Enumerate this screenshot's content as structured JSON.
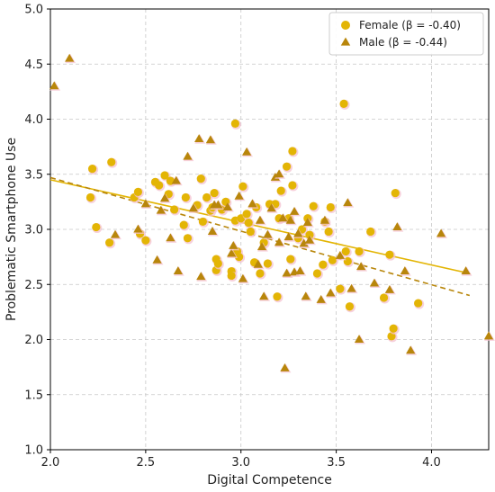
{
  "chart_data": {
    "type": "scatter",
    "title": "",
    "xlabel": "Digital Competence",
    "ylabel": "Problematic Smartphone Use",
    "xlim": [
      2.0,
      4.3
    ],
    "ylim": [
      1.0,
      5.0
    ],
    "x_ticks": [
      "2.0",
      "2.5",
      "3.0",
      "3.5",
      "4.0"
    ],
    "y_ticks": [
      "1.0",
      "1.5",
      "2.0",
      "2.5",
      "3.0",
      "3.5",
      "4.0",
      "4.5",
      "5.0"
    ],
    "grid": true,
    "legend_position": "top-right",
    "series": [
      {
        "name": "Female (β = -0.40)",
        "marker": "circle",
        "color": "#e3b505",
        "points": [
          [
            2.22,
            3.55
          ],
          [
            2.21,
            3.29
          ],
          [
            2.24,
            3.02
          ],
          [
            2.31,
            2.88
          ],
          [
            2.32,
            3.61
          ],
          [
            2.44,
            3.29
          ],
          [
            2.46,
            3.34
          ],
          [
            2.47,
            2.96
          ],
          [
            2.5,
            2.9
          ],
          [
            2.55,
            3.43
          ],
          [
            2.57,
            3.4
          ],
          [
            2.6,
            3.49
          ],
          [
            2.62,
            3.32
          ],
          [
            2.63,
            3.44
          ],
          [
            2.65,
            3.18
          ],
          [
            2.7,
            3.04
          ],
          [
            2.71,
            3.29
          ],
          [
            2.72,
            2.92
          ],
          [
            2.77,
            3.22
          ],
          [
            2.79,
            3.46
          ],
          [
            2.8,
            3.07
          ],
          [
            2.82,
            3.29
          ],
          [
            2.84,
            3.17
          ],
          [
            2.85,
            3.2
          ],
          [
            2.86,
            3.33
          ],
          [
            2.87,
            2.73
          ],
          [
            2.87,
            2.63
          ],
          [
            2.88,
            2.69
          ],
          [
            2.9,
            3.18
          ],
          [
            2.92,
            3.25
          ],
          [
            2.95,
            2.62
          ],
          [
            2.95,
            2.58
          ],
          [
            2.97,
            3.96
          ],
          [
            2.97,
            3.08
          ],
          [
            2.98,
            2.8
          ],
          [
            2.99,
            2.75
          ],
          [
            3.0,
            3.1
          ],
          [
            3.01,
            3.39
          ],
          [
            3.03,
            3.14
          ],
          [
            3.04,
            3.06
          ],
          [
            3.05,
            2.98
          ],
          [
            3.07,
            2.7
          ],
          [
            3.08,
            3.2
          ],
          [
            3.1,
            2.6
          ],
          [
            3.12,
            2.88
          ],
          [
            3.14,
            2.69
          ],
          [
            3.15,
            3.23
          ],
          [
            3.18,
            3.23
          ],
          [
            3.19,
            2.39
          ],
          [
            3.2,
            3.1
          ],
          [
            3.21,
            3.35
          ],
          [
            3.24,
            3.57
          ],
          [
            3.25,
            3.1
          ],
          [
            3.26,
            2.73
          ],
          [
            3.27,
            3.4
          ],
          [
            3.27,
            3.71
          ],
          [
            3.3,
            2.92
          ],
          [
            3.32,
            3.0
          ],
          [
            3.35,
            3.1
          ],
          [
            3.36,
            2.95
          ],
          [
            3.38,
            3.21
          ],
          [
            3.4,
            2.6
          ],
          [
            3.43,
            2.68
          ],
          [
            3.44,
            3.07
          ],
          [
            3.46,
            2.98
          ],
          [
            3.47,
            3.2
          ],
          [
            3.48,
            2.72
          ],
          [
            3.52,
            2.46
          ],
          [
            3.54,
            4.14
          ],
          [
            3.55,
            2.8
          ],
          [
            3.56,
            2.71
          ],
          [
            3.57,
            2.3
          ],
          [
            3.62,
            2.8
          ],
          [
            3.68,
            2.98
          ],
          [
            3.75,
            2.38
          ],
          [
            3.78,
            2.77
          ],
          [
            3.79,
            2.03
          ],
          [
            3.8,
            2.1
          ],
          [
            3.81,
            3.33
          ],
          [
            3.93,
            2.33
          ]
        ]
      },
      {
        "name": "Male (β = -0.44)",
        "marker": "triangle",
        "color": "#b8860b",
        "points": [
          [
            2.02,
            4.3
          ],
          [
            2.1,
            4.55
          ],
          [
            2.34,
            2.95
          ],
          [
            2.46,
            3.0
          ],
          [
            2.5,
            3.23
          ],
          [
            2.56,
            2.72
          ],
          [
            2.58,
            3.17
          ],
          [
            2.6,
            3.28
          ],
          [
            2.63,
            2.92
          ],
          [
            2.66,
            3.44
          ],
          [
            2.67,
            2.62
          ],
          [
            2.72,
            3.66
          ],
          [
            2.75,
            3.19
          ],
          [
            2.78,
            3.82
          ],
          [
            2.79,
            2.57
          ],
          [
            2.84,
            3.81
          ],
          [
            2.85,
            2.98
          ],
          [
            2.86,
            3.22
          ],
          [
            2.88,
            3.22
          ],
          [
            2.93,
            3.2
          ],
          [
            2.95,
            2.78
          ],
          [
            2.96,
            2.85
          ],
          [
            2.99,
            3.3
          ],
          [
            3.01,
            2.55
          ],
          [
            3.03,
            3.7
          ],
          [
            3.06,
            3.23
          ],
          [
            3.09,
            2.68
          ],
          [
            3.1,
            3.08
          ],
          [
            3.11,
            2.84
          ],
          [
            3.12,
            2.39
          ],
          [
            3.14,
            2.95
          ],
          [
            3.16,
            3.19
          ],
          [
            3.18,
            3.47
          ],
          [
            3.2,
            3.5
          ],
          [
            3.2,
            2.88
          ],
          [
            3.22,
            3.1
          ],
          [
            3.23,
            1.74
          ],
          [
            3.24,
            2.6
          ],
          [
            3.25,
            2.93
          ],
          [
            3.26,
            3.08
          ],
          [
            3.28,
            2.61
          ],
          [
            3.28,
            3.16
          ],
          [
            3.3,
            2.96
          ],
          [
            3.31,
            2.62
          ],
          [
            3.33,
            2.87
          ],
          [
            3.34,
            2.39
          ],
          [
            3.35,
            3.06
          ],
          [
            3.36,
            2.9
          ],
          [
            3.42,
            2.36
          ],
          [
            3.44,
            3.08
          ],
          [
            3.47,
            2.42
          ],
          [
            3.52,
            2.76
          ],
          [
            3.56,
            3.24
          ],
          [
            3.58,
            2.46
          ],
          [
            3.62,
            2.0
          ],
          [
            3.63,
            2.66
          ],
          [
            3.7,
            2.51
          ],
          [
            3.78,
            2.45
          ],
          [
            3.82,
            3.02
          ],
          [
            3.86,
            2.62
          ],
          [
            3.89,
            1.9
          ],
          [
            4.05,
            2.96
          ],
          [
            4.18,
            2.62
          ],
          [
            4.3,
            2.03
          ]
        ]
      }
    ],
    "fit_lines": [
      {
        "series": "Female (β = -0.40)",
        "style": "solid",
        "color": "#e3b505",
        "x": [
          2.0,
          4.2
        ],
        "y": [
          3.45,
          2.6
        ]
      },
      {
        "series": "Male (β = -0.44)",
        "style": "dashed",
        "color": "#b8860b",
        "x": [
          2.0,
          4.2
        ],
        "y": [
          3.47,
          2.4
        ]
      }
    ]
  }
}
